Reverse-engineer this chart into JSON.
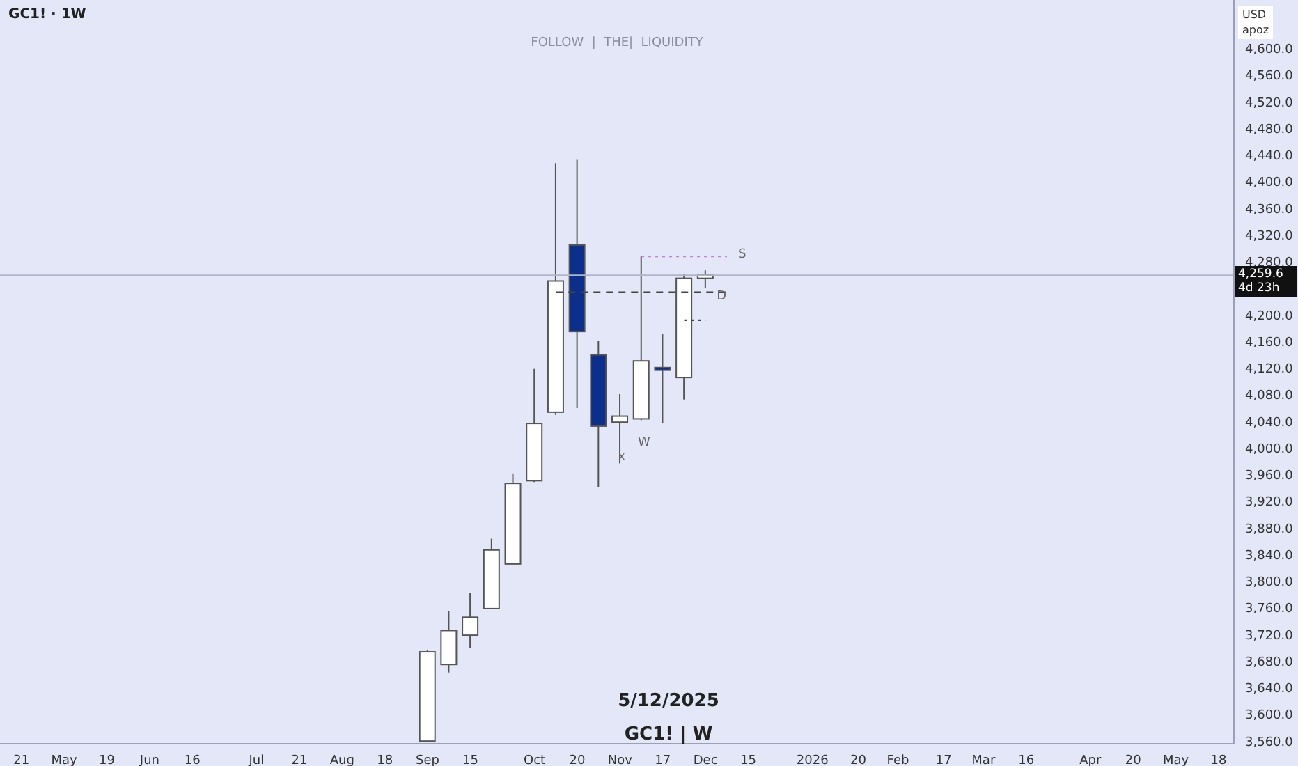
{
  "chart_data": {
    "type": "candlestick",
    "title": "GC1! · 1W",
    "subtitle": "FOLLOW  |  THE|  LIQUIDITY",
    "annotations": [
      "USD",
      "apoz",
      "4d 23h",
      "5/12/2025",
      "GC1! | W",
      {
        "text": "S",
        "x": "2025-12-08",
        "y": 4288
      },
      {
        "text": "D",
        "x": "2025-12-01",
        "y": 4225
      },
      "W",
      "x"
    ],
    "x": [
      "2025-09-01",
      "2025-09-08",
      "2025-09-15",
      "2025-09-22",
      "2025-09-29",
      "2025-10-06",
      "2025-10-13",
      "2025-10-20",
      "2025-10-27",
      "2025-11-03",
      "2025-11-10",
      "2025-11-17",
      "2025-11-24",
      "2025-12-01"
    ],
    "ohlc": [
      [
        3560,
        3696,
        3560,
        3694
      ],
      [
        3675,
        3755,
        3663,
        3726
      ],
      [
        3719,
        3782,
        3700,
        3746
      ],
      [
        3759,
        3864,
        3759,
        3847
      ],
      [
        3826,
        3962,
        3826,
        3947
      ],
      [
        3951,
        4119,
        3949,
        4037
      ],
      [
        4054,
        4428,
        4050,
        4251
      ],
      [
        4305,
        4433,
        4060,
        4175
      ],
      [
        4140,
        4161,
        3941,
        4033
      ],
      [
        4039,
        4081,
        3977,
        4048
      ],
      [
        4044,
        4288,
        4042,
        4131
      ],
      [
        4121,
        4171,
        4037,
        4117
      ],
      [
        4106,
        4261,
        4073,
        4255
      ],
      [
        4255,
        4267,
        4240,
        4259.6
      ]
    ],
    "colors": [
      "#ffffff",
      "#ffffff",
      "#ffffff",
      "#ffffff",
      "#ffffff",
      "#ffffff",
      "#ffffff",
      "#0d2f8c",
      "#0d2f8c",
      "#ffffff",
      "#ffffff",
      "#0d2f8c",
      "#ffffff",
      "#ffffff"
    ],
    "series": [
      {
        "type": "line",
        "x": [
          "2025-10-13",
          "2025-12-08"
        ],
        "values": [
          4234,
          4234
        ],
        "color": "#444444",
        "line_style": "dashed"
      },
      {
        "type": "line",
        "x": [
          "2025-11-10",
          "2025-12-08"
        ],
        "values": [
          4288,
          4288
        ],
        "color": "#c77dd9",
        "line_style": "dotted"
      },
      {
        "type": "line",
        "x": [
          "2025-11-24",
          "2025-12-01"
        ],
        "values": [
          4192,
          4192
        ],
        "color": "#444444",
        "line_style": "dotted"
      }
    ],
    "ref_lines": [
      {
        "axis": "y",
        "value": 4259.6,
        "label": "4,259.6",
        "color": "#b0b4c8"
      }
    ],
    "xlim": [
      "2025-04-14",
      "2026-05-23"
    ],
    "xticks": [
      {
        "value": "2025-04-21",
        "label": "21"
      },
      {
        "value": "2025-05-05",
        "label": "May"
      },
      {
        "value": "2025-05-19",
        "label": "19"
      },
      {
        "value": "2025-06-02",
        "label": "Jun"
      },
      {
        "value": "2025-06-16",
        "label": "16"
      },
      {
        "value": "2025-07-07",
        "label": "Jul"
      },
      {
        "value": "2025-07-21",
        "label": "21"
      },
      {
        "value": "2025-08-04",
        "label": "Aug"
      },
      {
        "value": "2025-08-18",
        "label": "18"
      },
      {
        "value": "2025-09-01",
        "label": "Sep"
      },
      {
        "value": "2025-09-15",
        "label": "15"
      },
      {
        "value": "2025-10-06",
        "label": "Oct"
      },
      {
        "value": "2025-10-20",
        "label": "20"
      },
      {
        "value": "2025-11-03",
        "label": "Nov"
      },
      {
        "value": "2025-11-17",
        "label": "17"
      },
      {
        "value": "2025-12-01",
        "label": "Dec"
      },
      {
        "value": "2025-12-15",
        "label": "15"
      },
      {
        "value": "2026-01-05",
        "label": "2026"
      },
      {
        "value": "2026-01-20",
        "label": "20"
      },
      {
        "value": "2026-02-02",
        "label": "Feb"
      },
      {
        "value": "2026-02-17",
        "label": "17"
      },
      {
        "value": "2026-03-02",
        "label": "Mar"
      },
      {
        "value": "2026-03-16",
        "label": "16"
      },
      {
        "value": "2026-04-06",
        "label": "Apr"
      },
      {
        "value": "2026-04-20",
        "label": "20"
      },
      {
        "value": "2026-05-04",
        "label": "May"
      },
      {
        "value": "2026-05-18",
        "label": "18"
      }
    ],
    "ylim": [
      3556,
      4673
    ],
    "yticks": [
      {
        "value": 3560,
        "label": "3,560.0"
      },
      {
        "value": 3600,
        "label": "3,600.0"
      },
      {
        "value": 3640,
        "label": "3,640.0"
      },
      {
        "value": 3680,
        "label": "3,680.0"
      },
      {
        "value": 3720,
        "label": "3,720.0"
      },
      {
        "value": 3760,
        "label": "3,760.0"
      },
      {
        "value": 3800,
        "label": "3,800.0"
      },
      {
        "value": 3840,
        "label": "3,840.0"
      },
      {
        "value": 3880,
        "label": "3,880.0"
      },
      {
        "value": 3920,
        "label": "3,920.0"
      },
      {
        "value": 3960,
        "label": "3,960.0"
      },
      {
        "value": 4000,
        "label": "4,000.0"
      },
      {
        "value": 4040,
        "label": "4,040.0"
      },
      {
        "value": 4080,
        "label": "4,080.0"
      },
      {
        "value": 4120,
        "label": "4,120.0"
      },
      {
        "value": 4160,
        "label": "4,160.0"
      },
      {
        "value": 4200,
        "label": "4,200.0"
      },
      {
        "value": 4280,
        "label": "4,280.0"
      },
      {
        "value": 4320,
        "label": "4,320.0"
      },
      {
        "value": 4360,
        "label": "4,360.0"
      },
      {
        "value": 4400,
        "label": "4,400.0"
      },
      {
        "value": 4440,
        "label": "4,440.0"
      },
      {
        "value": 4480,
        "label": "4,480.0"
      },
      {
        "value": 4520,
        "label": "4,520.0"
      },
      {
        "value": 4560,
        "label": "4,560.0"
      },
      {
        "value": 4600,
        "label": "4,600.0"
      }
    ]
  }
}
